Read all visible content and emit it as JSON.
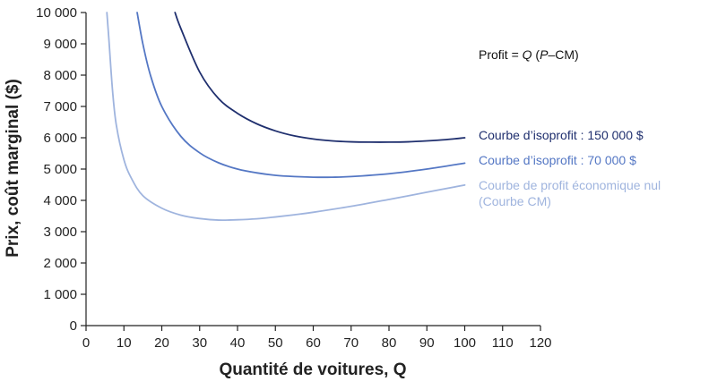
{
  "chart_data": {
    "type": "line",
    "title": "",
    "xlabel": "Quantité de voitures, Q",
    "ylabel": "Prix, coût marginal ($)",
    "xlim": [
      0,
      120
    ],
    "ylim": [
      0,
      10000
    ],
    "xticks": [
      0,
      10,
      20,
      30,
      40,
      50,
      60,
      70,
      80,
      90,
      100,
      110,
      120
    ],
    "xtick_labels": [
      "0",
      "10",
      "20",
      "30",
      "40",
      "50",
      "60",
      "70",
      "80",
      "90",
      "100",
      "110",
      "120"
    ],
    "yticks": [
      0,
      1000,
      2000,
      3000,
      4000,
      5000,
      6000,
      7000,
      8000,
      9000,
      10000
    ],
    "ytick_labels": [
      "0",
      "1 000",
      "2 000",
      "3 000",
      "4 000",
      "5 000",
      "6 000",
      "7 000",
      "8 000",
      "9 000",
      "10 000"
    ],
    "grid": false,
    "annotation": {
      "prefix": "Profit = ",
      "q": "Q",
      "open": " (",
      "p": "P",
      "rest": "–CM)"
    },
    "series": [
      {
        "name": "Courbe de profit économique nul",
        "label_lines": [
          "Courbe de profit économique nul",
          "(Courbe CM)"
        ],
        "color": "#9fb4de",
        "x": [
          5.5,
          6,
          7,
          8,
          10,
          12,
          15,
          20,
          25,
          30,
          35,
          40,
          45,
          50,
          55,
          60,
          70,
          80,
          90,
          100
        ],
        "y": [
          10000,
          9200,
          7500,
          6400,
          5300,
          4700,
          4150,
          3750,
          3530,
          3420,
          3370,
          3380,
          3410,
          3470,
          3540,
          3620,
          3810,
          4030,
          4260,
          4490
        ]
      },
      {
        "name": "Courbe d’isoprofit : 70 000 $",
        "label_lines": [
          "Courbe d’isoprofit : 70 000 $"
        ],
        "color": "#5477c4",
        "x": [
          13.5,
          15,
          17,
          20,
          25,
          30,
          35,
          40,
          45,
          50,
          55,
          60,
          65,
          70,
          80,
          90,
          100
        ],
        "y": [
          10000,
          9000,
          8000,
          7000,
          6050,
          5520,
          5200,
          5000,
          4880,
          4800,
          4760,
          4740,
          4740,
          4760,
          4850,
          5000,
          5190
        ]
      },
      {
        "name": "Courbe d’isoprofit : 150 000 $",
        "label_lines": [
          "Courbe d’isoprofit : 150 000 $"
        ],
        "color": "#1f2f6e",
        "x": [
          23.5,
          25,
          30,
          35,
          40,
          45,
          50,
          55,
          60,
          65,
          70,
          75,
          80,
          85,
          90,
          95,
          100
        ],
        "y": [
          10000,
          9500,
          8100,
          7250,
          6780,
          6450,
          6220,
          6060,
          5960,
          5900,
          5870,
          5860,
          5860,
          5870,
          5900,
          5940,
          6000
        ]
      }
    ]
  }
}
